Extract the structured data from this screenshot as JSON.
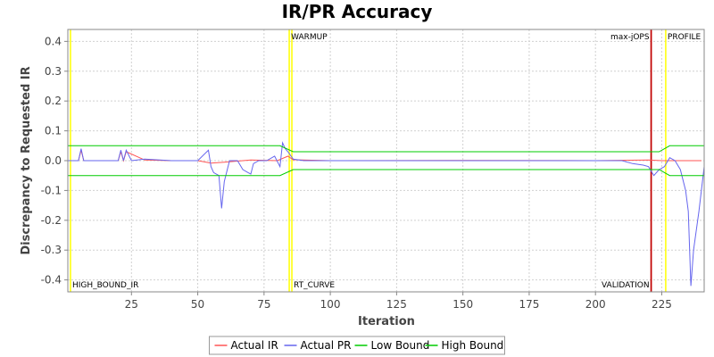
{
  "chart_data": {
    "type": "line",
    "title": "IR/PR Accuracy",
    "xlabel": "Iteration",
    "ylabel": "Discrepancy to Requested IR",
    "xlim": [
      1,
      241
    ],
    "ylim": [
      -0.44,
      0.44
    ],
    "xticks": [
      25,
      50,
      75,
      100,
      125,
      150,
      175,
      200,
      225
    ],
    "yticks": [
      0.4,
      0.3,
      0.2,
      0.1,
      0.0,
      -0.1,
      -0.2,
      -0.3,
      -0.4
    ],
    "ytick_labels": [
      "0.4",
      "0.3",
      "0.2",
      "0.1",
      "0.0",
      "-0.1",
      "-0.2",
      "-0.3",
      "-0.4"
    ],
    "grid": true,
    "legend_position": "bottom",
    "markers": [
      {
        "label": "HIGH_BOUND_IR",
        "x": 2,
        "color": "#ffff00",
        "label_pos": "bottom"
      },
      {
        "label": "WARMUP",
        "x": 84.5,
        "color": "#ffff00",
        "label_pos": "top"
      },
      {
        "label": "RT_CURVE",
        "x": 85.5,
        "color": "#ffff00",
        "label_pos": "bottom"
      },
      {
        "label": "max-jOPS",
        "x": 221,
        "color": "#c00000",
        "label_pos": "top-left"
      },
      {
        "label": "VALIDATION",
        "x": 221,
        "color": "#c00000",
        "label_pos": "bottom-left"
      },
      {
        "label": "PROFILE",
        "x": 226.5,
        "color": "#ffff00",
        "label_pos": "top"
      }
    ],
    "series": [
      {
        "name": "Actual IR",
        "color": "#ff5555",
        "x": [
          1,
          5,
          6,
          7,
          20,
          21,
          22,
          23,
          30,
          40,
          50,
          55,
          60,
          70,
          80,
          84,
          86,
          100,
          150,
          200,
          220,
          225,
          230,
          235,
          240
        ],
        "y": [
          0.0,
          0.0,
          0.035,
          0.0,
          0.0,
          0.03,
          0.0,
          0.03,
          0.002,
          0.0,
          0.0,
          -0.008,
          -0.005,
          0.002,
          0.0,
          0.015,
          0.003,
          0.0,
          0.001,
          0.0,
          0.002,
          0.0,
          0.0,
          0.0,
          0.0
        ]
      },
      {
        "name": "Actual PR",
        "color": "#6666ee",
        "x": [
          1,
          5,
          6,
          7,
          20,
          21,
          22,
          23,
          25,
          30,
          40,
          50,
          54,
          55,
          56,
          58,
          59,
          60,
          62,
          65,
          67,
          69,
          70,
          71,
          73,
          76,
          79,
          81,
          82,
          83,
          84,
          86,
          90,
          100,
          120,
          150,
          180,
          190,
          200,
          210,
          214,
          218,
          220,
          222,
          224,
          226,
          228,
          230,
          232,
          234,
          235,
          236,
          237,
          239,
          241
        ],
        "y": [
          0.0,
          0.0,
          0.04,
          0.0,
          0.0,
          0.035,
          0.0,
          0.035,
          0.0,
          0.005,
          0.0,
          0.0,
          0.035,
          -0.02,
          -0.04,
          -0.05,
          -0.16,
          -0.07,
          0.0,
          0.0,
          -0.03,
          -0.04,
          -0.045,
          -0.01,
          0.0,
          0.0,
          0.015,
          -0.02,
          0.06,
          0.04,
          0.03,
          0.005,
          0.0,
          0.0,
          0.0,
          0.0,
          0.0,
          0.0,
          0.0,
          0.0,
          -0.01,
          -0.015,
          -0.02,
          -0.05,
          -0.03,
          -0.02,
          0.01,
          0.0,
          -0.03,
          -0.1,
          -0.17,
          -0.42,
          -0.3,
          -0.17,
          -0.02
        ]
      },
      {
        "name": "Low Bound",
        "color": "#00cc00",
        "x": [
          1,
          81,
          86,
          224,
          228,
          241
        ],
        "y": [
          -0.05,
          -0.05,
          -0.03,
          -0.03,
          -0.05,
          -0.05
        ]
      },
      {
        "name": "High Bound",
        "color": "#00cc00",
        "x": [
          1,
          81,
          86,
          224,
          228,
          241
        ],
        "y": [
          0.05,
          0.05,
          0.03,
          0.03,
          0.05,
          0.05
        ]
      }
    ]
  }
}
